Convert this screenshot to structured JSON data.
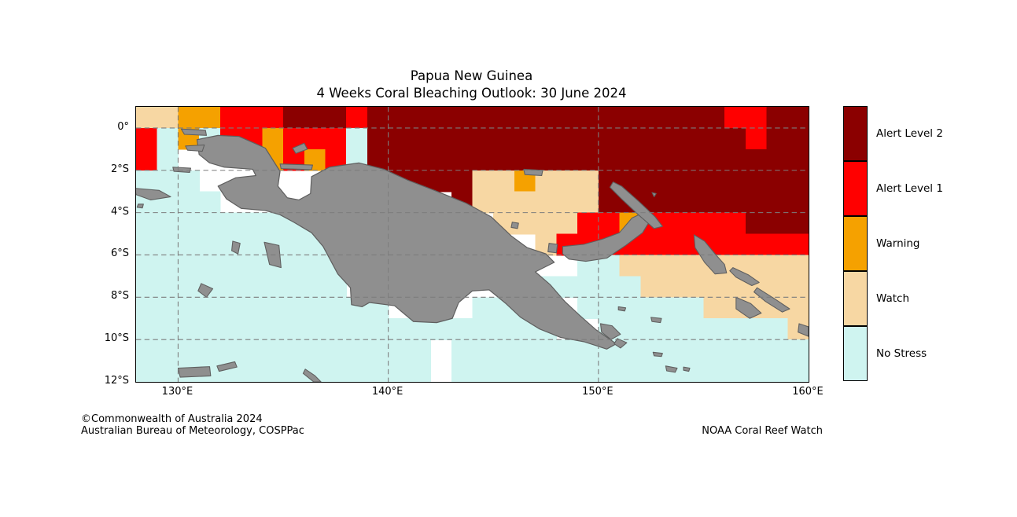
{
  "title": {
    "line1": "Papua New Guinea",
    "line2": "4 Weeks Coral Bleaching Outlook: 30 June 2024"
  },
  "footer": {
    "copyright": "©Commonwealth of Australia 2024",
    "agency": "Australian Bureau of Meteorology, COSPPac",
    "source": "NOAA Coral Reef Watch"
  },
  "legend": {
    "items": [
      {
        "key": "D",
        "label": "Alert Level 2",
        "color": "#8B0000"
      },
      {
        "key": "R",
        "label": "Alert Level 1",
        "color": "#FF0000"
      },
      {
        "key": "O",
        "label": "Warning",
        "color": "#F5A100"
      },
      {
        "key": "W",
        "label": "Watch",
        "color": "#F7D7A3"
      },
      {
        "key": "N",
        "label": "No Stress",
        "color": "#CFF4F0"
      }
    ]
  },
  "chart_data": {
    "type": "heatmap",
    "title": "Papua New Guinea",
    "subtitle": "4 Weeks Coral Bleaching Outlook: 30 June 2024",
    "region": "Papua New Guinea and surrounding seas",
    "lon_range": [
      128,
      160
    ],
    "lat_range": [
      1,
      -12
    ],
    "cell_size_deg": 1,
    "palette": {
      "D": "#8B0000",
      "R": "#FF0000",
      "O": "#F5A100",
      "W": "#F7D7A3",
      "N": "#CFF4F0"
    },
    "legend_key": {
      "D": "Alert Level 2",
      "R": "Alert Level 1",
      "O": "Warning",
      "W": "Watch",
      "N": "No Stress",
      ".": "No Data / Land"
    },
    "grid_rows": [
      "WWOORRRDDDRDDDDDDDDDDDDDDDDDRRDD",
      "RNONRRORRRNDDDDDDDDDDDDDDDDDDRDD",
      "RN....ORORNDDDDDDDDDDDDDDDDDDDDD",
      "NNN......DDDDDDDWWOWWWDDDDDDDDDD",
      "NNNN...........DWWWWWWDDDDDDDDDD",
      "NNNNNNNNN........WWWWRRORRRRRDDD",
      "NNNNNNNNNN.........WRRRRRRRRRRRR",
      "NNNNNNNNNN...........NNWWWWWWWWW",
      "NNNNNNNNNN........NNNNNNWWWWWWWW",
      "NNNNNNNNNNNN....NNNN.NNNNNNWWWWW",
      "NNNNNNNNNNNNNNNNNNNN..NNNNNNNNNW",
      "NNNNNNNNNNNNNN.NNNNNNNNNNNNNNNNN",
      "NNNNNNNNNNNNNN.NNNNNNNNNNNNNNNNN"
    ],
    "lat_ticks": [
      {
        "label": "0°",
        "value": 0
      },
      {
        "label": "2°S",
        "value": -2
      },
      {
        "label": "4°S",
        "value": -4
      },
      {
        "label": "6°S",
        "value": -6
      },
      {
        "label": "8°S",
        "value": -8
      },
      {
        "label": "10°S",
        "value": -10
      },
      {
        "label": "12°S",
        "value": -12
      }
    ],
    "lon_ticks": [
      {
        "label": "130°E",
        "value": 130
      },
      {
        "label": "140°E",
        "value": 140
      },
      {
        "label": "150°E",
        "value": 150
      },
      {
        "label": "160°E",
        "value": 160
      }
    ],
    "gridline_lats": [
      0,
      -2,
      -4,
      -6,
      -8,
      -10
    ],
    "gridline_lons": [
      130,
      140,
      150
    ],
    "grid_color": "#7d7d7d",
    "land_color": "#8F8F8F",
    "coast_color": "#5f5f5f",
    "land": {
      "mainland": [
        [
          130.9,
          -0.55
        ],
        [
          131.9,
          -0.35
        ],
        [
          132.9,
          -0.4
        ],
        [
          133.7,
          -0.75
        ],
        [
          134.15,
          -0.95
        ],
        [
          134.85,
          -2.05
        ],
        [
          134.75,
          -2.75
        ],
        [
          135.2,
          -3.3
        ],
        [
          135.75,
          -3.4
        ],
        [
          136.3,
          -3.1
        ],
        [
          136.35,
          -2.3
        ],
        [
          137.2,
          -1.85
        ],
        [
          138.6,
          -1.65
        ],
        [
          139.8,
          -1.95
        ],
        [
          140.9,
          -2.45
        ],
        [
          142.2,
          -2.95
        ],
        [
          143.7,
          -3.55
        ],
        [
          144.9,
          -4.2
        ],
        [
          145.85,
          -5.1
        ],
        [
          146.6,
          -5.65
        ],
        [
          147.5,
          -5.95
        ],
        [
          147.9,
          -6.35
        ],
        [
          147.0,
          -6.8
        ],
        [
          147.7,
          -7.4
        ],
        [
          148.4,
          -8.2
        ],
        [
          149.1,
          -8.85
        ],
        [
          149.9,
          -9.55
        ],
        [
          150.85,
          -10.2
        ],
        [
          150.4,
          -10.45
        ],
        [
          149.3,
          -10.1
        ],
        [
          148.2,
          -9.9
        ],
        [
          147.2,
          -9.5
        ],
        [
          146.3,
          -8.95
        ],
        [
          145.6,
          -8.3
        ],
        [
          144.8,
          -7.65
        ],
        [
          144.0,
          -7.7
        ],
        [
          143.35,
          -8.25
        ],
        [
          143.05,
          -9.0
        ],
        [
          142.3,
          -9.2
        ],
        [
          141.2,
          -9.15
        ],
        [
          140.3,
          -8.4
        ],
        [
          139.1,
          -8.25
        ],
        [
          138.75,
          -8.45
        ],
        [
          138.25,
          -8.35
        ],
        [
          138.2,
          -7.55
        ],
        [
          137.6,
          -6.9
        ],
        [
          136.9,
          -5.6
        ],
        [
          136.35,
          -4.95
        ],
        [
          135.5,
          -4.45
        ],
        [
          134.85,
          -4.1
        ],
        [
          134.15,
          -3.9
        ],
        [
          133.0,
          -3.8
        ],
        [
          132.3,
          -3.35
        ],
        [
          131.9,
          -2.75
        ],
        [
          132.75,
          -2.35
        ],
        [
          133.7,
          -2.25
        ],
        [
          133.55,
          -1.95
        ],
        [
          132.2,
          -1.85
        ],
        [
          131.5,
          -1.65
        ],
        [
          131.0,
          -1.25
        ]
      ],
      "islands": [
        {
          "name": "waigeo",
          "points": [
            [
              130.15,
              -0.05
            ],
            [
              131.3,
              -0.1
            ],
            [
              131.35,
              -0.35
            ],
            [
              130.3,
              -0.3
            ]
          ]
        },
        {
          "name": "batanta",
          "points": [
            [
              130.35,
              -0.85
            ],
            [
              131.25,
              -0.8
            ],
            [
              131.15,
              -1.1
            ],
            [
              130.45,
              -1.05
            ]
          ]
        },
        {
          "name": "misool",
          "points": [
            [
              129.75,
              -1.85
            ],
            [
              130.6,
              -1.9
            ],
            [
              130.55,
              -2.1
            ],
            [
              129.8,
              -2.05
            ]
          ]
        },
        {
          "name": "seram",
          "points": [
            [
              127.95,
              -2.85
            ],
            [
              129.1,
              -2.95
            ],
            [
              129.65,
              -3.25
            ],
            [
              128.7,
              -3.4
            ],
            [
              128.0,
              -3.15
            ]
          ]
        },
        {
          "name": "ambon",
          "points": [
            [
              128.1,
              -3.6
            ],
            [
              128.35,
              -3.6
            ],
            [
              128.3,
              -3.78
            ],
            [
              128.05,
              -3.75
            ]
          ]
        },
        {
          "name": "kai",
          "points": [
            [
              132.6,
              -5.35
            ],
            [
              132.95,
              -5.45
            ],
            [
              132.85,
              -5.95
            ],
            [
              132.55,
              -5.8
            ]
          ]
        },
        {
          "name": "aru",
          "points": [
            [
              134.1,
              -5.4
            ],
            [
              134.8,
              -5.55
            ],
            [
              134.9,
              -6.6
            ],
            [
              134.35,
              -6.45
            ]
          ]
        },
        {
          "name": "tanimbar",
          "points": [
            [
              131.1,
              -7.35
            ],
            [
              131.65,
              -7.6
            ],
            [
              131.35,
              -8.0
            ],
            [
              130.95,
              -7.7
            ]
          ]
        },
        {
          "name": "yapen",
          "points": [
            [
              134.85,
              -1.7
            ],
            [
              136.4,
              -1.75
            ],
            [
              136.35,
              -1.97
            ],
            [
              134.9,
              -1.92
            ]
          ]
        },
        {
          "name": "biak",
          "points": [
            [
              135.45,
              -0.95
            ],
            [
              136.0,
              -0.72
            ],
            [
              136.15,
              -1.0
            ],
            [
              135.6,
              -1.2
            ]
          ]
        },
        {
          "name": "manus",
          "points": [
            [
              146.45,
              -1.95
            ],
            [
              147.35,
              -2.0
            ],
            [
              147.3,
              -2.25
            ],
            [
              146.5,
              -2.2
            ]
          ]
        },
        {
          "name": "karkar",
          "points": [
            [
              145.9,
              -4.45
            ],
            [
              146.2,
              -4.5
            ],
            [
              146.15,
              -4.75
            ],
            [
              145.85,
              -4.7
            ]
          ]
        },
        {
          "name": "umboi",
          "points": [
            [
              147.65,
              -5.45
            ],
            [
              148.05,
              -5.5
            ],
            [
              148.0,
              -5.9
            ],
            [
              147.6,
              -5.85
            ]
          ]
        },
        {
          "name": "new-britain",
          "points": [
            [
              148.3,
              -5.6
            ],
            [
              149.3,
              -5.5
            ],
            [
              150.2,
              -5.25
            ],
            [
              151.0,
              -4.95
            ],
            [
              151.6,
              -4.25
            ],
            [
              152.15,
              -4.0
            ],
            [
              152.5,
              -4.3
            ],
            [
              152.1,
              -4.95
            ],
            [
              151.3,
              -5.55
            ],
            [
              150.4,
              -6.15
            ],
            [
              149.4,
              -6.3
            ],
            [
              148.6,
              -6.2
            ],
            [
              148.3,
              -5.95
            ]
          ]
        },
        {
          "name": "new-ireland",
          "points": [
            [
              150.7,
              -2.55
            ],
            [
              151.1,
              -2.75
            ],
            [
              151.9,
              -3.45
            ],
            [
              152.7,
              -4.2
            ],
            [
              153.05,
              -4.65
            ],
            [
              152.65,
              -4.75
            ],
            [
              151.9,
              -4.1
            ],
            [
              151.1,
              -3.35
            ],
            [
              150.55,
              -2.8
            ]
          ]
        },
        {
          "name": "lihir",
          "points": [
            [
              152.55,
              -3.05
            ],
            [
              152.75,
              -3.1
            ],
            [
              152.65,
              -3.25
            ]
          ]
        },
        {
          "name": "bougainville",
          "points": [
            [
              154.55,
              -5.05
            ],
            [
              155.05,
              -5.35
            ],
            [
              155.55,
              -5.95
            ],
            [
              156.0,
              -6.45
            ],
            [
              156.1,
              -6.85
            ],
            [
              155.55,
              -6.9
            ],
            [
              155.05,
              -6.35
            ],
            [
              154.6,
              -5.65
            ]
          ]
        },
        {
          "name": "choiseul",
          "points": [
            [
              156.4,
              -6.6
            ],
            [
              157.15,
              -6.95
            ],
            [
              157.65,
              -7.3
            ],
            [
              157.3,
              -7.45
            ],
            [
              156.55,
              -7.05
            ],
            [
              156.25,
              -6.75
            ]
          ]
        },
        {
          "name": "santa-isabel",
          "points": [
            [
              157.55,
              -7.55
            ],
            [
              158.35,
              -8.05
            ],
            [
              159.1,
              -8.55
            ],
            [
              158.75,
              -8.7
            ],
            [
              157.95,
              -8.2
            ],
            [
              157.4,
              -7.75
            ]
          ]
        },
        {
          "name": "new-georgia",
          "points": [
            [
              156.55,
              -8.0
            ],
            [
              157.25,
              -8.3
            ],
            [
              157.75,
              -8.75
            ],
            [
              157.2,
              -9.0
            ],
            [
              156.55,
              -8.55
            ]
          ]
        },
        {
          "name": "guadalcanal",
          "points": [
            [
              159.55,
              -9.25
            ],
            [
              160.0,
              -9.4
            ],
            [
              160.0,
              -9.85
            ],
            [
              159.5,
              -9.65
            ]
          ]
        },
        {
          "name": "dentrecasteaux",
          "points": [
            [
              150.1,
              -9.25
            ],
            [
              150.65,
              -9.35
            ],
            [
              151.05,
              -9.75
            ],
            [
              150.6,
              -10.0
            ],
            [
              150.15,
              -9.65
            ]
          ]
        },
        {
          "name": "normanby",
          "points": [
            [
              150.9,
              -9.95
            ],
            [
              151.35,
              -10.15
            ],
            [
              151.05,
              -10.4
            ],
            [
              150.75,
              -10.2
            ]
          ]
        },
        {
          "name": "trobriand",
          "points": [
            [
              150.95,
              -8.45
            ],
            [
              151.3,
              -8.5
            ],
            [
              151.25,
              -8.65
            ],
            [
              150.95,
              -8.6
            ]
          ]
        },
        {
          "name": "woodlark",
          "points": [
            [
              152.5,
              -8.95
            ],
            [
              153.0,
              -9.0
            ],
            [
              152.95,
              -9.2
            ],
            [
              152.55,
              -9.15
            ]
          ]
        },
        {
          "name": "misima",
          "points": [
            [
              152.6,
              -10.6
            ],
            [
              153.05,
              -10.65
            ],
            [
              153.0,
              -10.8
            ],
            [
              152.65,
              -10.77
            ]
          ]
        },
        {
          "name": "tagula",
          "points": [
            [
              153.2,
              -11.25
            ],
            [
              153.75,
              -11.35
            ],
            [
              153.65,
              -11.55
            ],
            [
              153.25,
              -11.48
            ]
          ]
        },
        {
          "name": "rossel",
          "points": [
            [
              154.05,
              -11.3
            ],
            [
              154.35,
              -11.35
            ],
            [
              154.3,
              -11.5
            ],
            [
              154.05,
              -11.45
            ]
          ]
        },
        {
          "name": "melville",
          "points": [
            [
              130.0,
              -11.35
            ],
            [
              131.5,
              -11.28
            ],
            [
              131.55,
              -11.72
            ],
            [
              130.1,
              -11.78
            ]
          ]
        },
        {
          "name": "cobourg",
          "points": [
            [
              131.85,
              -11.25
            ],
            [
              132.7,
              -11.05
            ],
            [
              132.8,
              -11.3
            ],
            [
              131.95,
              -11.5
            ]
          ]
        },
        {
          "name": "wessel",
          "points": [
            [
              136.05,
              -11.4
            ],
            [
              136.5,
              -11.7
            ],
            [
              136.8,
              -12.0
            ],
            [
              136.45,
              -12.0
            ],
            [
              135.95,
              -11.6
            ]
          ]
        }
      ]
    }
  }
}
